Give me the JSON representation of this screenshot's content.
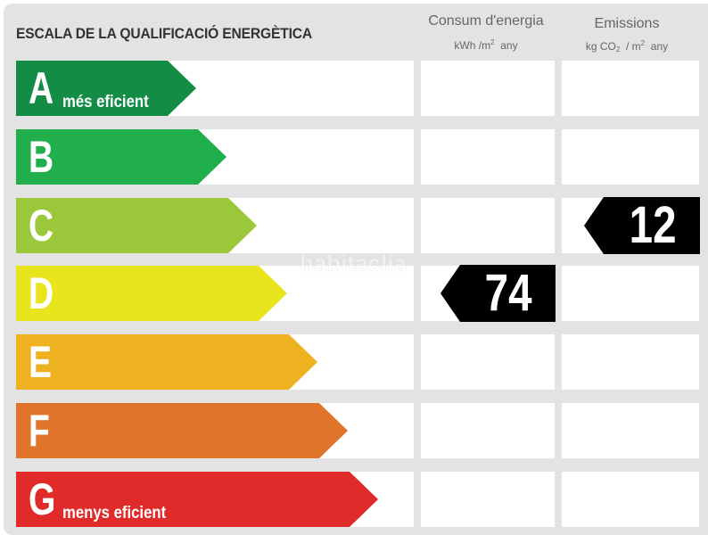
{
  "title": "ESCALA DE LA QUALIFICACIÓ ENERGÈTICA",
  "columns": {
    "consumption": {
      "label": "Consum d'energia",
      "unit_pre": "kWh /m",
      "unit_sup": "2",
      "unit_post": "any"
    },
    "emissions": {
      "label": "Emissions",
      "unit_pre": "kg CO",
      "unit_sub": "2",
      "unit_mid": "/ m",
      "unit_sup": "2",
      "unit_post": "any"
    }
  },
  "classes": [
    {
      "letter": "A",
      "label": "més eficient",
      "color": "#138d45"
    },
    {
      "letter": "B",
      "label": "",
      "color": "#21ae4c"
    },
    {
      "letter": "C",
      "label": "",
      "color": "#9bc83b"
    },
    {
      "letter": "D",
      "label": "",
      "color": "#e8e51c"
    },
    {
      "letter": "E",
      "label": "",
      "color": "#eeb11f"
    },
    {
      "letter": "F",
      "label": "",
      "color": "#e0742a"
    },
    {
      "letter": "G",
      "label": "menys eficient",
      "color": "#e12a2a"
    }
  ],
  "rating": {
    "consumption": {
      "value": "74",
      "class": "D"
    },
    "emissions": {
      "value": "12",
      "class": "C"
    }
  },
  "watermark": "habitaclia"
}
